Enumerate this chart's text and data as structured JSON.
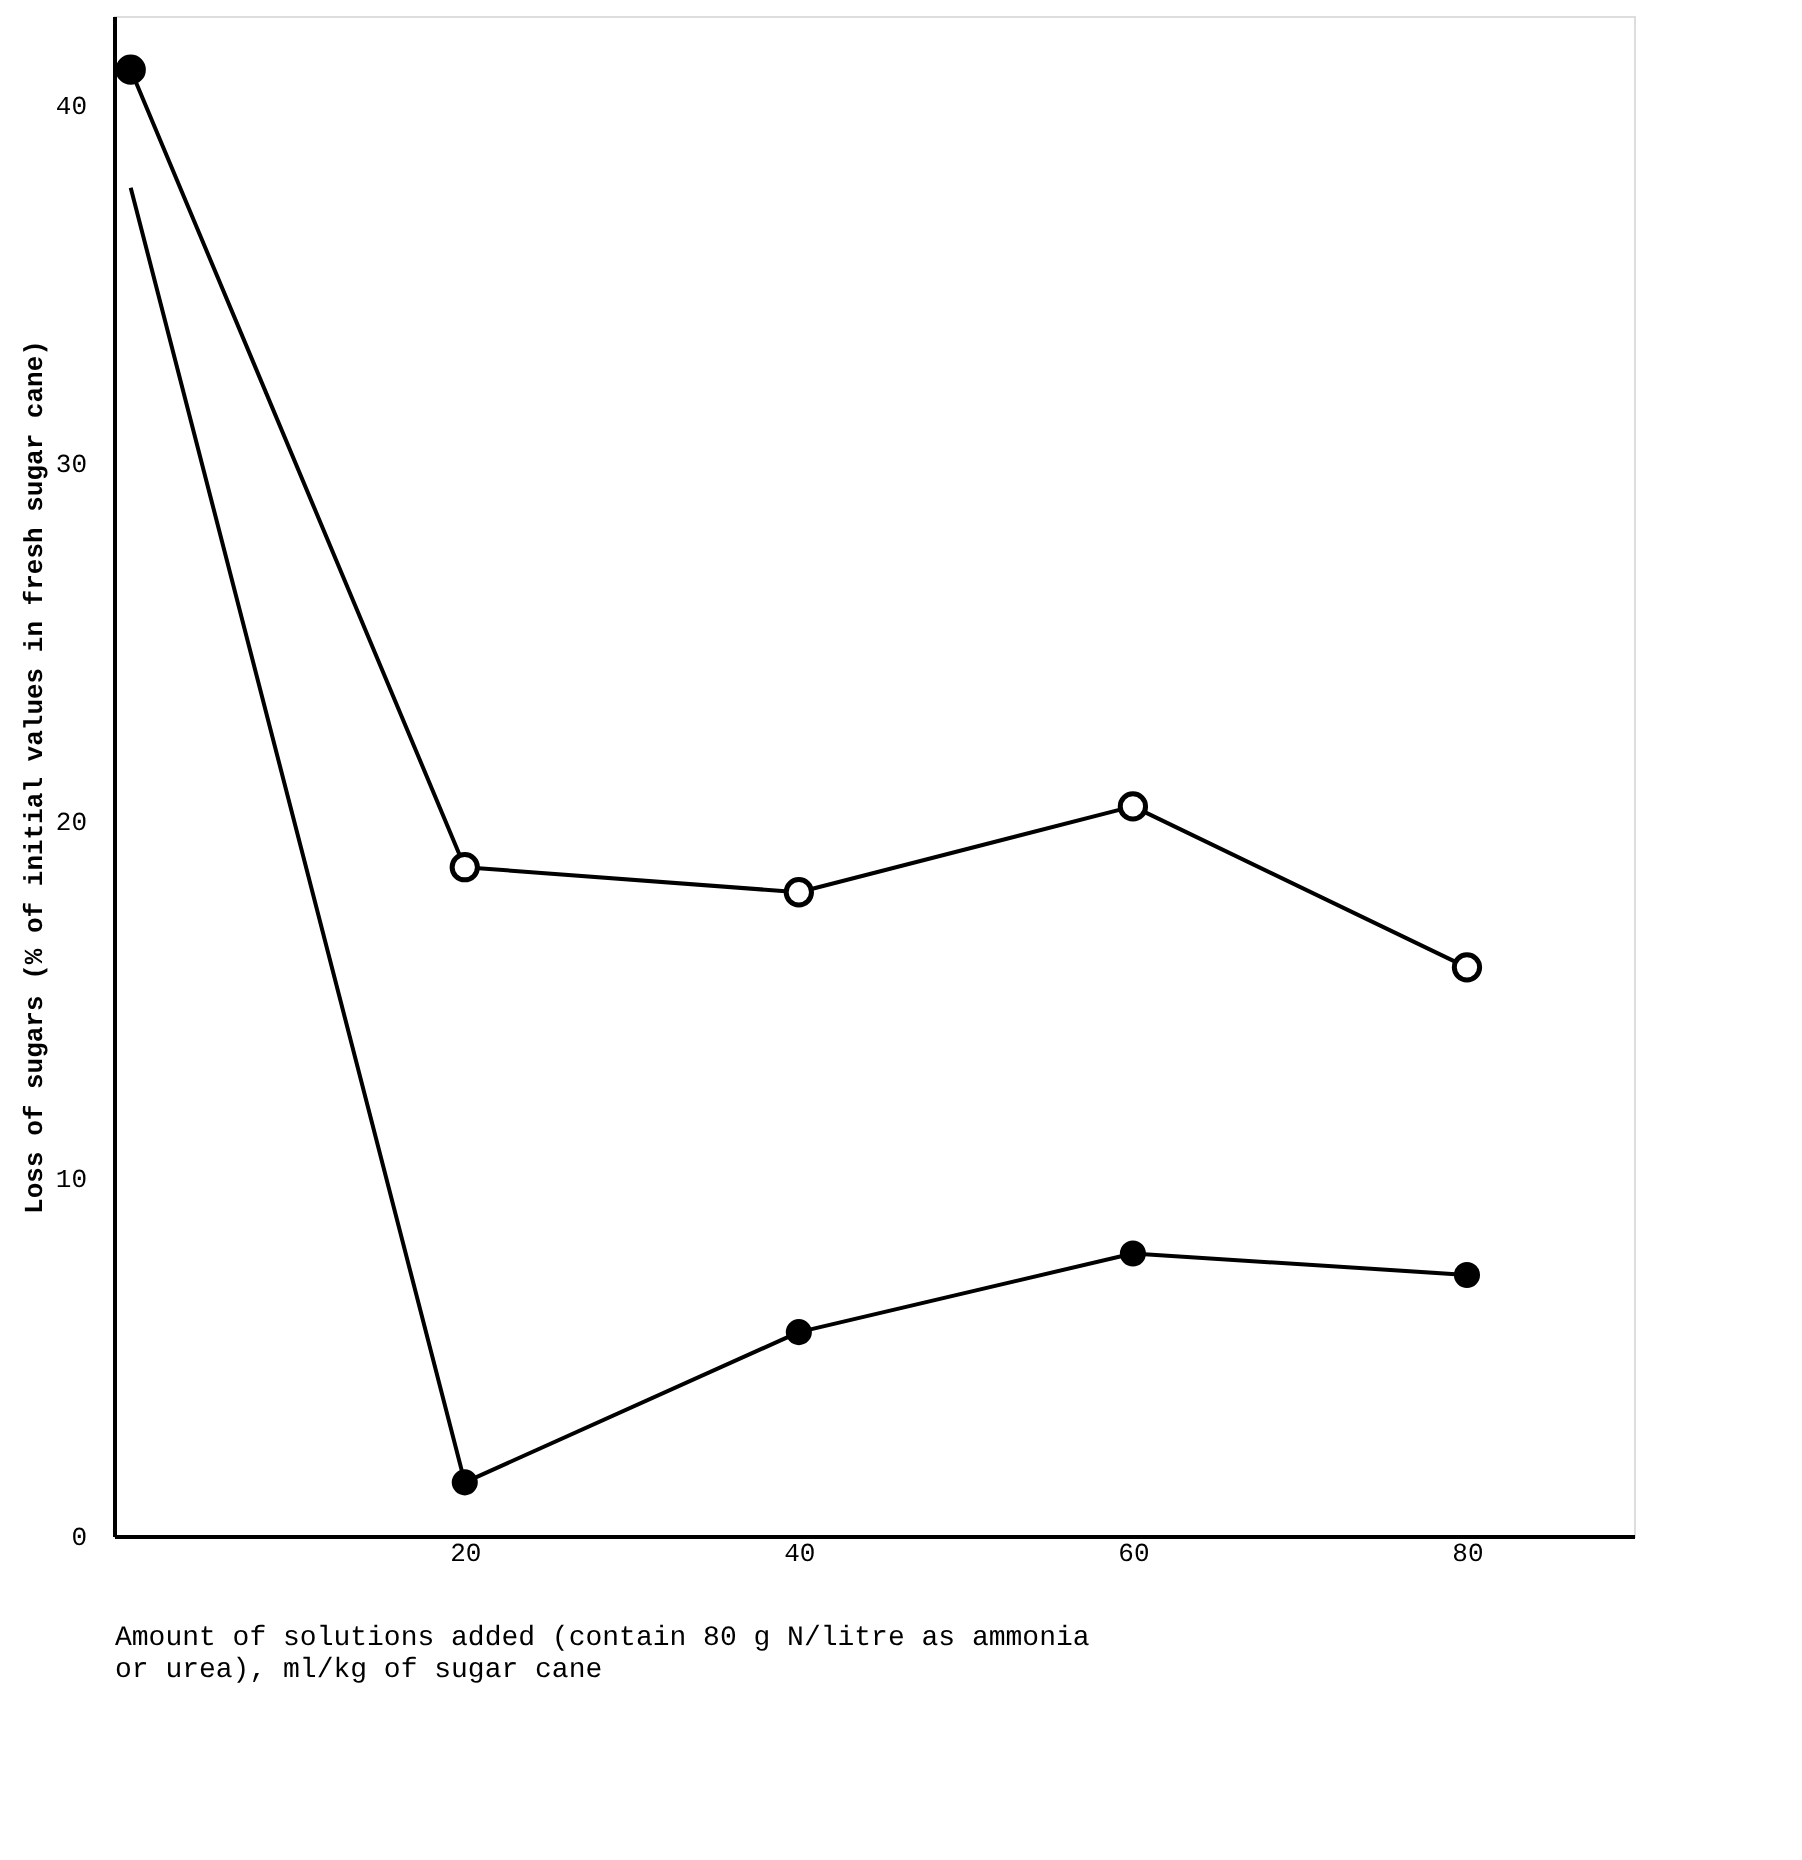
{
  "chart_data": {
    "type": "line",
    "xlabel": "Amount of solutions added (contain 80 g N/litre as ammonia or urea), ml/kg of sugar cane",
    "ylabel": "Loss of sugars (% of initial values in fresh sugar cane)",
    "x": [
      0,
      20,
      40,
      60,
      80
    ],
    "series": [
      {
        "marker": "circle",
        "color": "#000000",
        "values": [
          41,
          18.7,
          18,
          20.4,
          15.9
        ]
      },
      {
        "marker": "none",
        "color": "#000000",
        "values": [
          37.7,
          1.5,
          5.7,
          7.9,
          7.3
        ]
      },
      {
        "type": "scatter",
        "marker": "circle",
        "color": "#000000",
        "values": [
          41,
          1.5,
          5.7,
          7.9,
          7.3
        ]
      }
    ],
    "xlim": [
      -1,
      90
    ],
    "ylim": [
      0,
      42.5
    ],
    "xticks": [
      20,
      40,
      60,
      80
    ],
    "yticks": [
      0,
      10,
      20,
      30,
      40
    ],
    "grid": false
  }
}
